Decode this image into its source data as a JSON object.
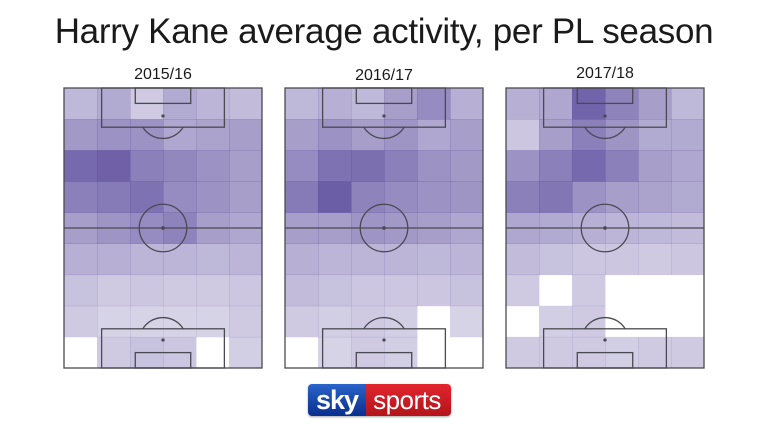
{
  "title": "Harry Kane average activity, per PL season",
  "logo": {
    "sky": "sky",
    "sports": "sports"
  },
  "colors": {
    "heat": "#5f4f9f",
    "line": "#4a4a52",
    "logo_blue": "#1a4fb5",
    "logo_red": "#d21f26"
  },
  "chart_data": {
    "type": "heatmap",
    "rows": 9,
    "cols": 6,
    "value_note": "relative activity intensity 0-1, row 0 at top (attacking end)",
    "panels": [
      {
        "season": "2015/16",
        "values": [
          [
            0.4,
            0.48,
            0.3,
            0.48,
            0.42,
            0.38
          ],
          [
            0.58,
            0.62,
            0.62,
            0.5,
            0.52,
            0.55
          ],
          [
            0.85,
            0.9,
            0.72,
            0.68,
            0.62,
            0.55
          ],
          [
            0.72,
            0.75,
            0.8,
            0.65,
            0.62,
            0.55
          ],
          [
            0.55,
            0.6,
            0.65,
            0.7,
            0.55,
            0.5
          ],
          [
            0.45,
            0.45,
            0.42,
            0.42,
            0.4,
            0.42
          ],
          [
            0.35,
            0.3,
            0.32,
            0.3,
            0.3,
            0.32
          ],
          [
            0.3,
            0.25,
            0.25,
            0.25,
            0.25,
            0.3
          ],
          [
            0.0,
            0.3,
            0.35,
            0.32,
            0.0,
            0.28
          ]
        ]
      },
      {
        "season": "2016/17",
        "values": [
          [
            0.4,
            0.45,
            0.4,
            0.55,
            0.65,
            0.45
          ],
          [
            0.55,
            0.62,
            0.55,
            0.6,
            0.5,
            0.55
          ],
          [
            0.65,
            0.8,
            0.82,
            0.72,
            0.62,
            0.58
          ],
          [
            0.75,
            0.92,
            0.7,
            0.65,
            0.62,
            0.6
          ],
          [
            0.55,
            0.55,
            0.6,
            0.58,
            0.55,
            0.5
          ],
          [
            0.45,
            0.42,
            0.42,
            0.42,
            0.4,
            0.42
          ],
          [
            0.38,
            0.35,
            0.32,
            0.32,
            0.32,
            0.35
          ],
          [
            0.3,
            0.28,
            0.3,
            0.28,
            0.0,
            0.25
          ],
          [
            0.0,
            0.25,
            0.3,
            0.28,
            0.0,
            0.0
          ]
        ]
      },
      {
        "season": "2017/18",
        "values": [
          [
            0.45,
            0.5,
            0.88,
            0.7,
            0.55,
            0.4
          ],
          [
            0.32,
            0.55,
            0.72,
            0.6,
            0.48,
            0.48
          ],
          [
            0.62,
            0.72,
            0.85,
            0.72,
            0.55,
            0.5
          ],
          [
            0.72,
            0.78,
            0.62,
            0.55,
            0.52,
            0.48
          ],
          [
            0.5,
            0.48,
            0.45,
            0.42,
            0.4,
            0.38
          ],
          [
            0.38,
            0.35,
            0.32,
            0.32,
            0.3,
            0.32
          ],
          [
            0.3,
            0.0,
            0.3,
            0.0,
            0.0,
            0.0
          ],
          [
            0.0,
            0.28,
            0.3,
            0.0,
            0.0,
            0.0
          ],
          [
            0.3,
            0.3,
            0.3,
            0.28,
            0.3,
            0.3
          ]
        ]
      }
    ]
  }
}
